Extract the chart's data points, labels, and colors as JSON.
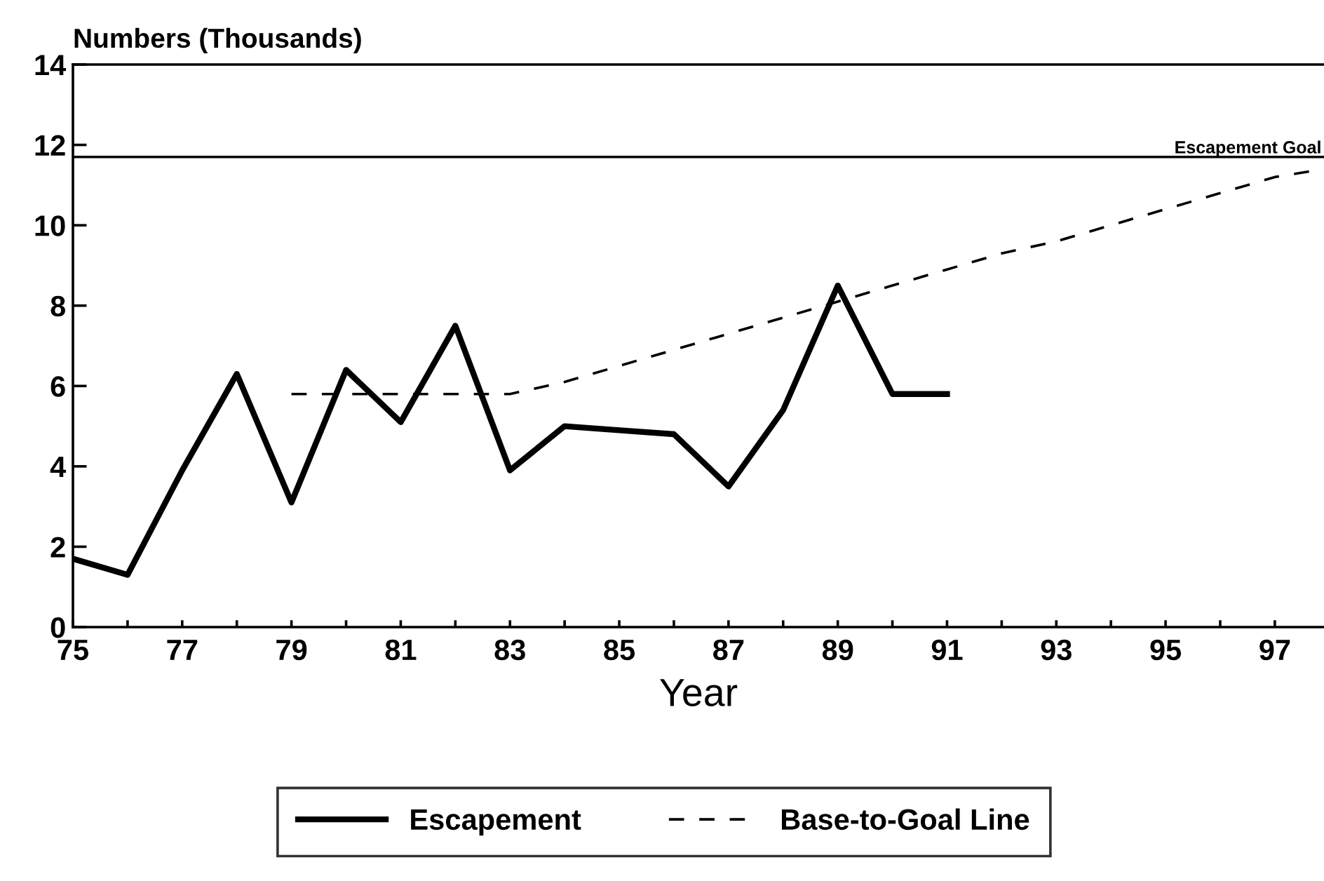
{
  "chart_data": {
    "type": "line",
    "ylabel": "Numbers (Thousands)",
    "xlabel": "Year",
    "xlim": [
      75,
      97.9
    ],
    "ylim": [
      0,
      14
    ],
    "xticks": [
      75,
      {
        "value": 76,
        "label": null
      },
      77,
      {
        "value": 78,
        "label": null
      },
      79,
      {
        "value": 80,
        "label": null
      },
      81,
      {
        "value": 82,
        "label": null
      },
      83,
      {
        "value": 84,
        "label": null
      },
      85,
      {
        "value": 86,
        "label": null
      },
      87,
      {
        "value": 88,
        "label": null
      },
      89,
      {
        "value": 90,
        "label": null
      },
      91,
      {
        "value": 92,
        "label": null
      },
      93,
      {
        "value": 94,
        "label": null
      },
      95,
      {
        "value": 96,
        "label": null
      },
      97
    ],
    "yticks": [
      0,
      2,
      4,
      6,
      8,
      10,
      12,
      14
    ],
    "series": [
      {
        "name": "Escapement",
        "color": "#000000",
        "line_style": "solid",
        "x": [
          75,
          76,
          77,
          78,
          79,
          80,
          81,
          82,
          83,
          84,
          85,
          86,
          87,
          88,
          89,
          90,
          91
        ],
        "values": [
          1.7,
          1.3,
          3.9,
          6.3,
          3.1,
          6.4,
          5.1,
          7.5,
          3.9,
          5.0,
          4.9,
          4.8,
          3.5,
          5.4,
          8.5,
          5.8,
          5.8
        ]
      },
      {
        "name": "Base-to-Goal Line",
        "color": "#000000",
        "line_style": "dashed",
        "x": [
          79,
          83,
          84,
          85,
          86,
          87,
          88,
          89,
          90,
          91,
          92,
          93,
          94,
          95,
          96,
          97,
          97.9
        ],
        "values": [
          5.8,
          5.8,
          6.1,
          6.5,
          6.9,
          7.3,
          7.7,
          8.1,
          8.5,
          8.9,
          9.3,
          9.6,
          10.0,
          10.4,
          10.8,
          11.2,
          11.4
        ]
      }
    ],
    "ref_lines": [
      {
        "axis": "y",
        "value": 11.7,
        "label": "Escapement Goal",
        "color": "#000000",
        "line_style": "solid"
      }
    ],
    "grid": false,
    "legend": "bottom",
    "marker": "none"
  }
}
